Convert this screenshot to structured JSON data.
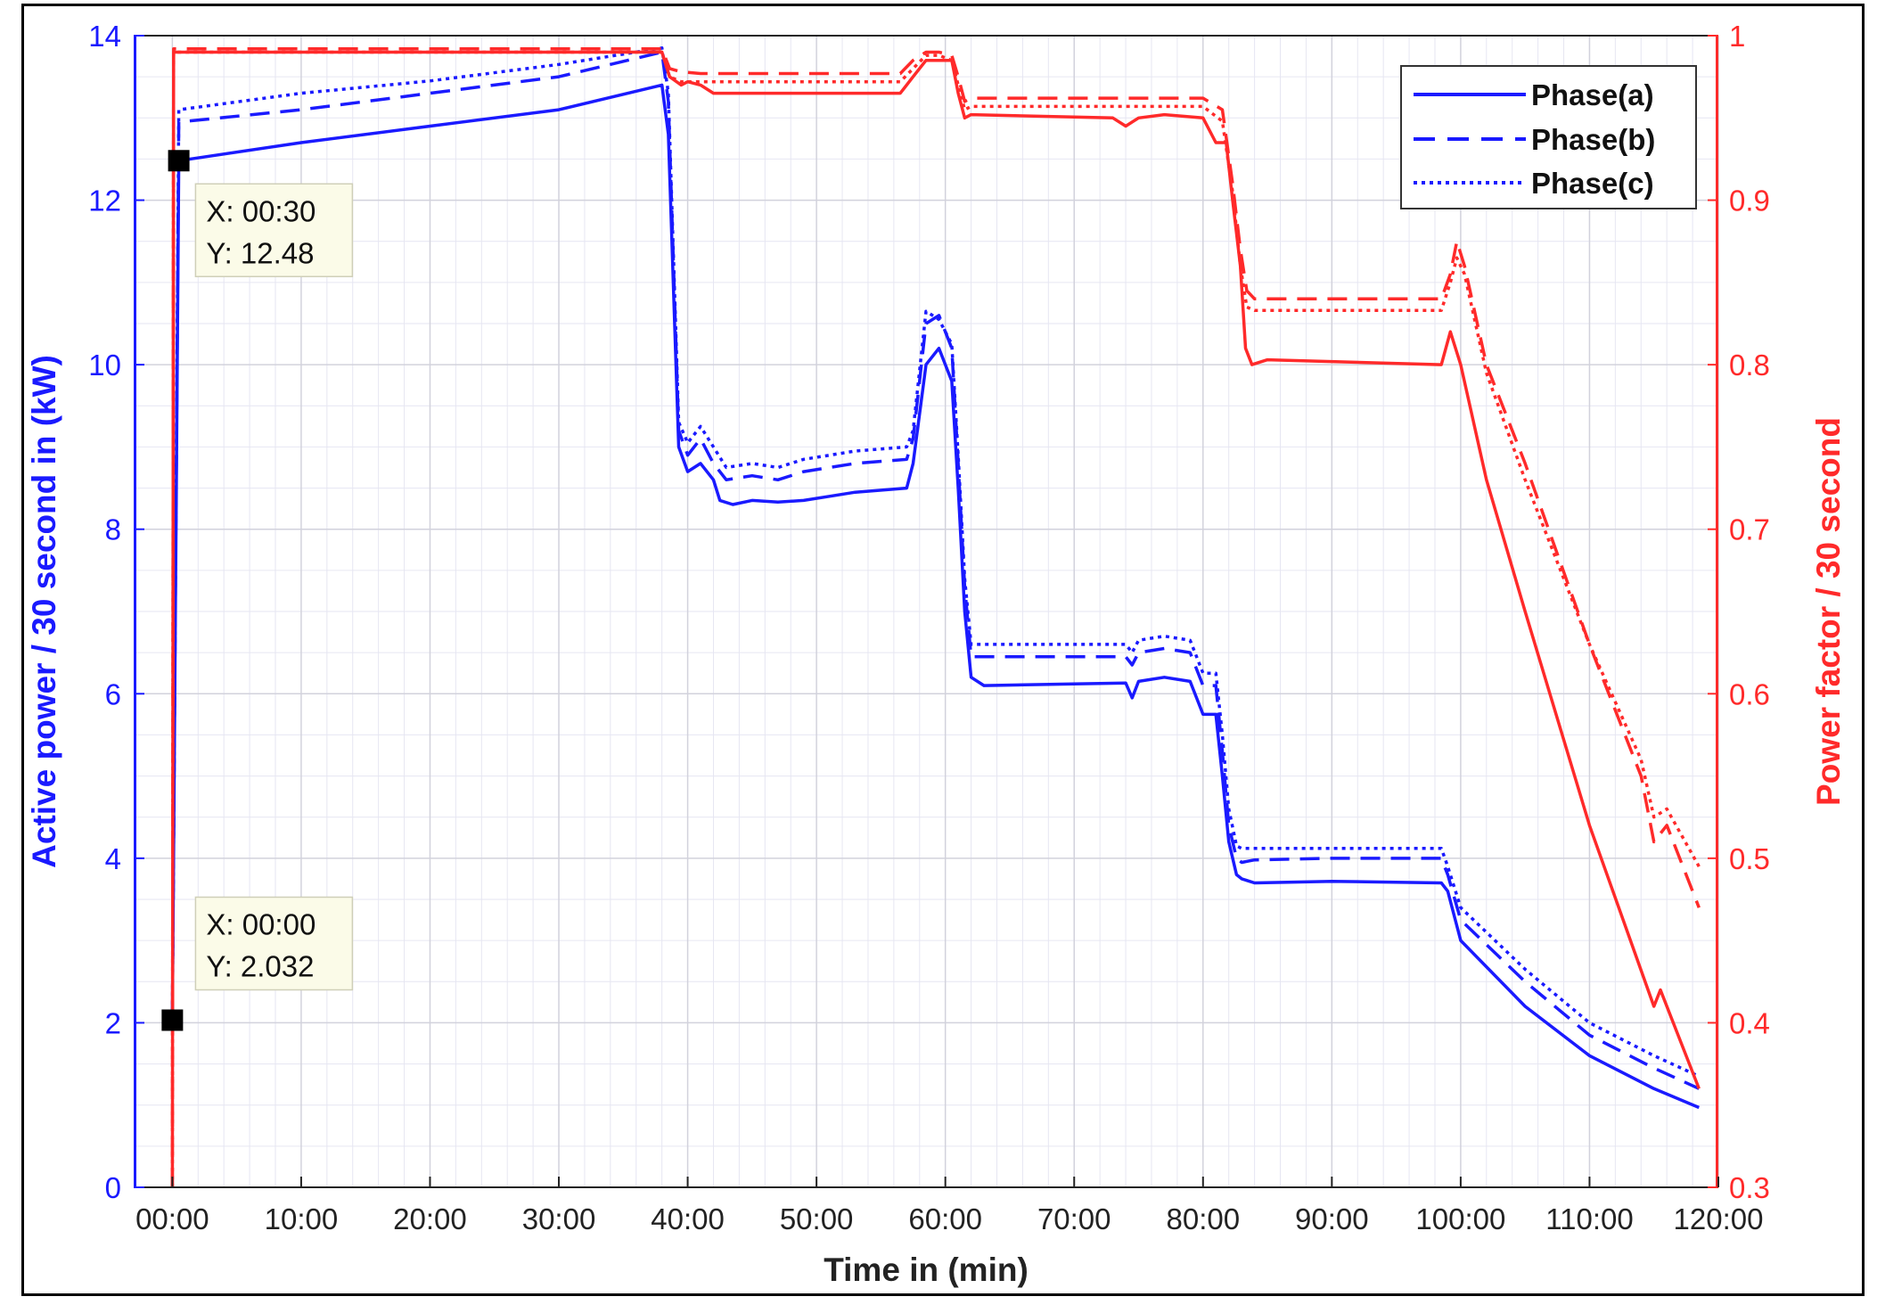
{
  "chart_data": {
    "type": "line",
    "xlabel": "Time in (min)",
    "ylabel_left": "Active power / 30 second  in (kW)",
    "ylabel_right": "Power factor / 30 second",
    "xlim": [
      -3,
      120
    ],
    "ylim_left": [
      0,
      14
    ],
    "ylim_right": [
      0.3,
      1.0
    ],
    "x_ticks": [
      0,
      10,
      20,
      30,
      40,
      50,
      60,
      70,
      80,
      90,
      100,
      110,
      120
    ],
    "x_tick_labels": [
      "00:00",
      "10:00",
      "20:00",
      "30:00",
      "40:00",
      "50:00",
      "60:00",
      "70:00",
      "80:00",
      "90:00",
      "100:00",
      "110:00",
      "120:00"
    ],
    "y_left_ticks": [
      0,
      2,
      4,
      6,
      8,
      10,
      12,
      14
    ],
    "y_left_tick_labels": [
      "0",
      "2",
      "4",
      "6",
      "8",
      "10",
      "12",
      "14"
    ],
    "y_right_ticks": [
      0.3,
      0.4,
      0.5,
      0.6,
      0.7,
      0.8,
      0.9,
      1.0
    ],
    "y_right_tick_labels": [
      "0.3",
      "0.4",
      "0.5",
      "0.6",
      "0.7",
      "0.8",
      "0.9",
      "1"
    ],
    "grid": true,
    "legend_position": "top-right",
    "colors": {
      "power": "#1a1aff",
      "power_factor": "#ff2a2a"
    },
    "legend": [
      {
        "label": "Phase(a)",
        "style": "solid"
      },
      {
        "label": "Phase(b)",
        "style": "dashed"
      },
      {
        "label": "Phase(c)",
        "style": "dotted"
      }
    ],
    "series": [
      {
        "name": "Phase(a)",
        "axis": "left",
        "style": "solid",
        "x": [
          0,
          0.5,
          10,
          20,
          30,
          38,
          38.5,
          39.3,
          40,
          41,
          42,
          42.5,
          43.5,
          45,
          47,
          49,
          51,
          53,
          57,
          57.5,
          58.5,
          59.5,
          60.5,
          61,
          61.5,
          62,
          63,
          70,
          74,
          74.5,
          75,
          77,
          79,
          80,
          81,
          81.5,
          82,
          82.6,
          83,
          84,
          90,
          98.5,
          99,
          100,
          105,
          110,
          115,
          118.5
        ],
        "y": [
          2.032,
          12.48,
          12.7,
          12.9,
          13.1,
          13.4,
          12.8,
          9.0,
          8.7,
          8.8,
          8.6,
          8.35,
          8.3,
          8.35,
          8.33,
          8.35,
          8.4,
          8.45,
          8.5,
          8.8,
          10.0,
          10.2,
          9.8,
          8.5,
          7.0,
          6.2,
          6.1,
          6.12,
          6.13,
          5.95,
          6.15,
          6.2,
          6.15,
          5.75,
          5.75,
          5.0,
          4.2,
          3.8,
          3.75,
          3.7,
          3.72,
          3.7,
          3.6,
          3.0,
          2.2,
          1.6,
          1.2,
          0.97
        ]
      },
      {
        "name": "Phase(b)",
        "axis": "left",
        "style": "dashed",
        "x": [
          0,
          0.5,
          10,
          20,
          30,
          38,
          38.5,
          39.3,
          40,
          41,
          42,
          43,
          45,
          47,
          49,
          51,
          53,
          57,
          57.5,
          58.5,
          59.5,
          60.5,
          61,
          61.5,
          62,
          63,
          70,
          74,
          74.5,
          75,
          77,
          79,
          80,
          81,
          81.5,
          82,
          82.6,
          83,
          84,
          90,
          98.5,
          99,
          100,
          105,
          110,
          115,
          118.5
        ],
        "y": [
          2.032,
          12.95,
          13.1,
          13.3,
          13.5,
          13.8,
          13.2,
          9.2,
          8.9,
          9.1,
          8.8,
          8.6,
          8.65,
          8.6,
          8.7,
          8.75,
          8.8,
          8.85,
          9.1,
          10.5,
          10.6,
          10.2,
          8.8,
          7.3,
          6.45,
          6.45,
          6.45,
          6.45,
          6.35,
          6.5,
          6.55,
          6.5,
          6.1,
          6.1,
          5.3,
          4.4,
          4.0,
          3.95,
          3.98,
          4.0,
          4.0,
          3.8,
          3.25,
          2.5,
          1.85,
          1.45,
          1.2
        ]
      },
      {
        "name": "Phase(c)",
        "axis": "left",
        "style": "dotted",
        "x": [
          0,
          0.5,
          10,
          20,
          30,
          38,
          38.5,
          39.3,
          40,
          41,
          42,
          43,
          45,
          47,
          49,
          51,
          53,
          57,
          57.5,
          58.5,
          59.5,
          60.5,
          61,
          61.5,
          62,
          63,
          70,
          74,
          74.5,
          75,
          77,
          79,
          80,
          81,
          81.5,
          82,
          82.6,
          83,
          84,
          90,
          98.5,
          99,
          100,
          105,
          110,
          115,
          118.5
        ],
        "y": [
          2.032,
          13.1,
          13.3,
          13.45,
          13.65,
          13.85,
          13.3,
          9.3,
          9.05,
          9.25,
          9.0,
          8.75,
          8.8,
          8.75,
          8.85,
          8.9,
          8.95,
          9.0,
          9.2,
          10.65,
          10.55,
          10.25,
          8.9,
          7.4,
          6.6,
          6.6,
          6.6,
          6.6,
          6.5,
          6.65,
          6.7,
          6.65,
          6.25,
          6.25,
          5.5,
          4.6,
          4.15,
          4.12,
          4.12,
          4.12,
          4.12,
          3.9,
          3.4,
          2.65,
          2.0,
          1.6,
          1.35
        ]
      },
      {
        "name": "Power factor phase(a)",
        "axis": "right",
        "style": "solid",
        "x": [
          0,
          0.1,
          0.4,
          5,
          37,
          38,
          38.6,
          39.5,
          40,
          41,
          42,
          44,
          56.5,
          57.5,
          58.5,
          59.5,
          60.5,
          61,
          61.5,
          62,
          73,
          74,
          75,
          77,
          80,
          81,
          81.8,
          82.3,
          82.9,
          83.3,
          83.8,
          85,
          98.5,
          99.2,
          100,
          102,
          105,
          110,
          115,
          115.5,
          116.5,
          118.5
        ],
        "y": [
          0.3,
          0.99,
          0.99,
          0.99,
          0.99,
          0.99,
          0.975,
          0.97,
          0.972,
          0.97,
          0.965,
          0.965,
          0.965,
          0.975,
          0.985,
          0.985,
          0.985,
          0.965,
          0.95,
          0.952,
          0.95,
          0.945,
          0.95,
          0.952,
          0.95,
          0.935,
          0.935,
          0.9,
          0.86,
          0.81,
          0.8,
          0.803,
          0.8,
          0.82,
          0.8,
          0.73,
          0.65,
          0.52,
          0.41,
          0.42,
          0.4,
          0.36
        ]
      },
      {
        "name": "Power factor phase(b)",
        "axis": "right",
        "style": "dashed",
        "x": [
          0,
          0.1,
          0.4,
          5,
          37,
          38,
          38.6,
          39.5,
          41,
          44,
          56.5,
          57.5,
          58.5,
          59.5,
          60.5,
          61,
          61.5,
          62,
          80,
          81.5,
          82.3,
          82.9,
          83.4,
          84,
          98.5,
          99.2,
          99.7,
          100.3,
          102,
          105,
          110,
          114,
          115,
          116,
          118.5
        ],
        "y": [
          0.3,
          0.992,
          0.992,
          0.992,
          0.992,
          0.992,
          0.98,
          0.978,
          0.977,
          0.977,
          0.977,
          0.985,
          0.99,
          0.99,
          0.988,
          0.975,
          0.96,
          0.962,
          0.962,
          0.955,
          0.91,
          0.87,
          0.845,
          0.84,
          0.84,
          0.855,
          0.875,
          0.86,
          0.8,
          0.74,
          0.63,
          0.55,
          0.51,
          0.52,
          0.47
        ]
      },
      {
        "name": "Power factor phase(c)",
        "axis": "right",
        "style": "dotted",
        "x": [
          0,
          0.1,
          0.4,
          5,
          37,
          38,
          38.6,
          39.5,
          41,
          44,
          56.5,
          57.5,
          58.5,
          59.5,
          60.5,
          61,
          61.5,
          62,
          80,
          81.5,
          82.3,
          82.9,
          83.4,
          84,
          98.5,
          99.2,
          99.7,
          100.3,
          102,
          105,
          110,
          114,
          115,
          116,
          118.5
        ],
        "y": [
          0.3,
          0.99,
          0.99,
          0.99,
          0.99,
          0.99,
          0.975,
          0.972,
          0.972,
          0.972,
          0.972,
          0.98,
          0.988,
          0.988,
          0.985,
          0.97,
          0.955,
          0.957,
          0.957,
          0.948,
          0.905,
          0.86,
          0.835,
          0.833,
          0.833,
          0.85,
          0.865,
          0.855,
          0.795,
          0.73,
          0.63,
          0.56,
          0.525,
          0.53,
          0.495
        ]
      }
    ],
    "data_tips": [
      {
        "x_text": "X: 00:30",
        "y_text": "Y: 12.48",
        "x": 0.5,
        "y": 12.48
      },
      {
        "x_text": "X: 00:00",
        "y_text": "Y: 2.032",
        "x": 0,
        "y": 2.032
      }
    ]
  }
}
